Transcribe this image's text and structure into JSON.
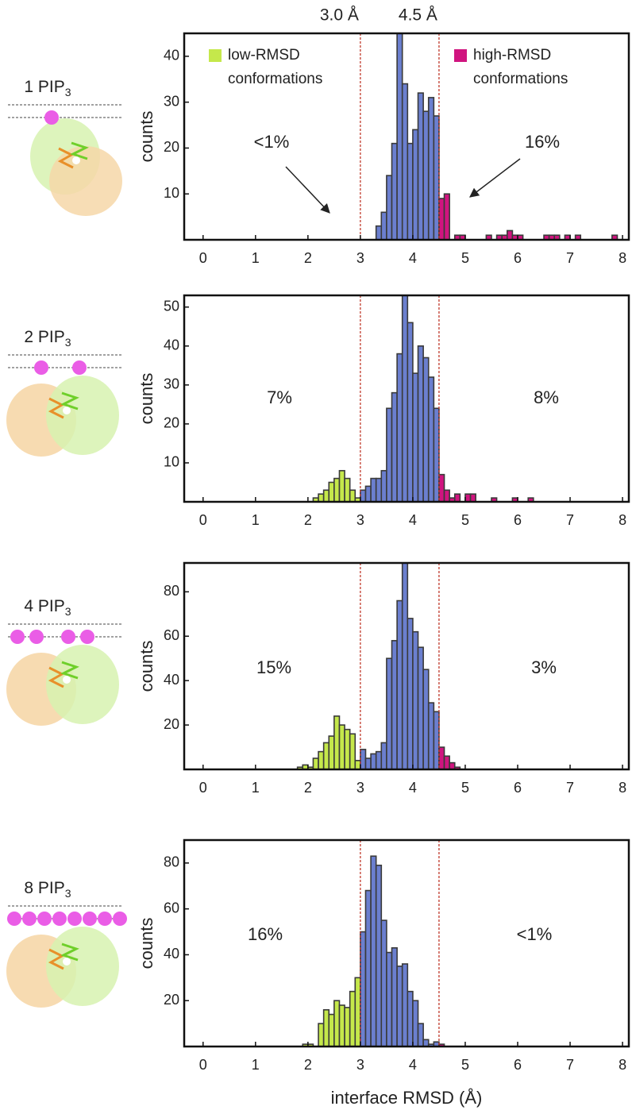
{
  "chart_data": [
    {
      "type": "histogram",
      "label": "1 PIP",
      "label_sub": "3",
      "ylabel": "counts",
      "bins": [
        3.3,
        3.4,
        3.5,
        3.6,
        3.7,
        3.8,
        3.9,
        4.0,
        4.1,
        4.2,
        4.3,
        4.4,
        4.5,
        4.6,
        4.7,
        4.8,
        4.9,
        5.0,
        5.1,
        5.2,
        5.3,
        5.4,
        5.5,
        5.6,
        5.7,
        5.8,
        5.9,
        6.0,
        6.1,
        6.2,
        6.3,
        6.4,
        6.5,
        6.6,
        6.7,
        6.8,
        6.9,
        7.0,
        7.1,
        7.2,
        7.3,
        7.4,
        7.5,
        7.6,
        7.7,
        7.8,
        7.9
      ],
      "values": [
        3,
        6,
        14,
        21,
        46,
        34,
        21,
        24,
        32,
        28,
        31,
        27,
        9,
        10,
        0,
        1,
        1,
        0,
        0,
        0,
        0,
        1,
        0,
        1,
        1,
        2,
        1,
        1,
        0,
        0,
        0,
        0,
        1,
        1,
        1,
        0,
        1,
        0,
        1,
        0,
        0,
        0,
        0,
        0,
        0,
        1
      ],
      "xlim": [
        -0.36,
        8.12
      ],
      "xticks": [
        0,
        1,
        2,
        3,
        4,
        5,
        6,
        7,
        8
      ],
      "ylim": [
        0,
        45
      ],
      "yticks": [
        10,
        20,
        30,
        40
      ],
      "thresholds": [
        {
          "value": 3.0,
          "label": "3.0 Å"
        },
        {
          "value": 4.5,
          "label": "4.5 Å"
        }
      ],
      "colors": [
        "#c5e84b",
        "#6b7fcf",
        "#d0147f"
      ],
      "legend": [
        {
          "label": "low-RMSD conformations",
          "color": "#c5e84b"
        },
        {
          "label": "high-RMSD conformations",
          "color": "#d0147f"
        }
      ],
      "annotations": [
        "<1%",
        "16%"
      ]
    },
    {
      "type": "histogram",
      "label": "2 PIP",
      "label_sub": "3",
      "ylabel": "counts",
      "bins": [
        2.1,
        2.2,
        2.3,
        2.4,
        2.5,
        2.6,
        2.7,
        2.8,
        2.9,
        3.0,
        3.1,
        3.2,
        3.3,
        3.4,
        3.5,
        3.6,
        3.7,
        3.8,
        3.9,
        4.0,
        4.1,
        4.2,
        4.3,
        4.4,
        4.5,
        4.6,
        4.7,
        4.8,
        4.9,
        5.0,
        5.1,
        5.2,
        5.3,
        5.4,
        5.5,
        5.6,
        5.7,
        5.8,
        5.9,
        6.0,
        6.1,
        6.2,
        6.3
      ],
      "values": [
        1,
        2,
        3,
        5,
        6,
        8,
        6,
        3,
        1,
        3,
        4,
        6,
        6,
        8,
        24,
        28,
        38,
        53,
        46,
        33,
        40,
        37,
        32,
        24,
        7,
        3,
        1,
        2,
        0,
        2,
        2,
        0,
        0,
        0,
        1,
        0,
        0,
        0,
        1,
        0,
        0,
        1
      ],
      "xlim": [
        -0.36,
        8.12
      ],
      "xticks": [
        0,
        1,
        2,
        3,
        4,
        5,
        6,
        7,
        8
      ],
      "ylim": [
        0,
        53
      ],
      "yticks": [
        10,
        20,
        30,
        40,
        50
      ],
      "thresholds": [
        3.0,
        4.5
      ],
      "colors": [
        "#c5e84b",
        "#6b7fcf",
        "#d0147f"
      ],
      "annotations": [
        "7%",
        "8%"
      ]
    },
    {
      "type": "histogram",
      "label": "4 PIP",
      "label_sub": "3",
      "ylabel": "counts",
      "bins": [
        1.8,
        1.9,
        2.0,
        2.1,
        2.2,
        2.3,
        2.4,
        2.5,
        2.6,
        2.7,
        2.8,
        2.9,
        3.0,
        3.1,
        3.2,
        3.3,
        3.4,
        3.5,
        3.6,
        3.7,
        3.8,
        3.9,
        4.0,
        4.1,
        4.2,
        4.3,
        4.4,
        4.5,
        4.6,
        4.7,
        4.8,
        4.9
      ],
      "values": [
        1,
        2,
        1,
        5,
        8,
        12,
        15,
        24,
        20,
        18,
        16,
        4,
        9,
        5,
        7,
        8,
        12,
        50,
        58,
        76,
        100,
        68,
        62,
        55,
        45,
        30,
        26,
        10,
        6,
        3,
        1
      ],
      "xlim": [
        -0.36,
        8.12
      ],
      "xticks": [
        0,
        1,
        2,
        3,
        4,
        5,
        6,
        7,
        8
      ],
      "ylim": [
        0,
        93
      ],
      "yticks": [
        20,
        40,
        60,
        80
      ],
      "thresholds": [
        3.0,
        4.5
      ],
      "colors": [
        "#c5e84b",
        "#6b7fcf",
        "#d0147f"
      ],
      "annotations": [
        "15%",
        "3%"
      ]
    },
    {
      "type": "histogram",
      "label": "8 PIP",
      "label_sub": "3",
      "ylabel": "counts",
      "xlabel": "interface RMSD (Å)",
      "bins": [
        1.9,
        2.0,
        2.1,
        2.2,
        2.3,
        2.4,
        2.5,
        2.6,
        2.7,
        2.8,
        2.9,
        3.0,
        3.1,
        3.2,
        3.3,
        3.4,
        3.5,
        3.6,
        3.7,
        3.8,
        3.9,
        4.0,
        4.1,
        4.2,
        4.3,
        4.4,
        4.5,
        4.6
      ],
      "values": [
        1,
        1,
        0,
        10,
        16,
        14,
        20,
        18,
        17,
        24,
        30,
        50,
        68,
        83,
        79,
        55,
        41,
        43,
        35,
        36,
        24,
        20,
        10,
        3,
        1,
        2,
        1
      ],
      "xlim": [
        -0.36,
        8.12
      ],
      "xticks": [
        0,
        1,
        2,
        3,
        4,
        5,
        6,
        7,
        8
      ],
      "ylim": [
        0,
        90
      ],
      "yticks": [
        20,
        40,
        60,
        80
      ],
      "thresholds": [
        3.0,
        4.5
      ],
      "colors": [
        "#c5e84b",
        "#6b7fcf",
        "#d0147f"
      ],
      "annotations": [
        "16%",
        "<1%"
      ]
    }
  ]
}
